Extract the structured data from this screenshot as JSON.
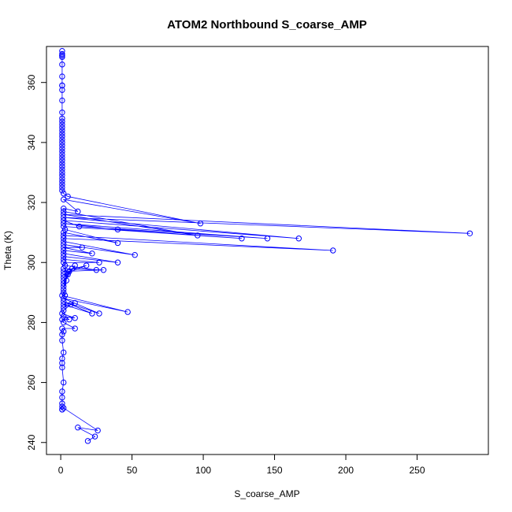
{
  "chart_data": {
    "type": "line",
    "title": "ATOM2 Northbound S_coarse_AMP",
    "xlabel": "S_coarse_AMP",
    "ylabel": "Theta (K)",
    "xlim": [
      -10,
      300
    ],
    "ylim": [
      236,
      372
    ],
    "xticks": [
      0,
      50,
      100,
      150,
      200,
      250
    ],
    "yticks": [
      240,
      260,
      280,
      300,
      320,
      340,
      360
    ],
    "grid": false,
    "legend": "none",
    "series_color": "#0000ff",
    "marker": "open-circle",
    "points": [
      [
        1,
        370.5
      ],
      [
        1,
        369.5
      ],
      [
        1,
        369
      ],
      [
        1,
        369
      ],
      [
        1,
        368.5
      ],
      [
        1,
        366
      ],
      [
        1,
        362
      ],
      [
        1,
        359
      ],
      [
        1,
        359
      ],
      [
        1,
        357.5
      ],
      [
        1,
        354
      ],
      [
        1,
        350
      ],
      [
        1,
        348
      ],
      [
        1,
        347
      ],
      [
        1,
        346
      ],
      [
        1,
        345
      ],
      [
        1,
        344
      ],
      [
        1,
        343
      ],
      [
        1,
        342
      ],
      [
        1,
        341
      ],
      [
        1,
        340
      ],
      [
        1,
        339
      ],
      [
        1,
        338
      ],
      [
        1,
        337
      ],
      [
        1,
        336
      ],
      [
        1,
        335
      ],
      [
        1,
        334
      ],
      [
        1,
        333
      ],
      [
        1,
        332
      ],
      [
        1,
        331
      ],
      [
        1,
        330
      ],
      [
        1,
        329
      ],
      [
        1,
        328
      ],
      [
        1,
        327
      ],
      [
        1,
        326
      ],
      [
        1,
        325
      ],
      [
        1,
        324
      ],
      [
        2,
        323
      ],
      [
        5,
        322
      ],
      [
        98,
        313
      ],
      [
        2,
        321
      ],
      [
        12,
        317
      ],
      [
        2,
        318
      ],
      [
        2,
        317
      ],
      [
        96,
        309
      ],
      [
        2,
        316
      ],
      [
        287,
        309.7
      ],
      [
        2,
        315
      ],
      [
        167,
        308
      ],
      [
        2,
        314
      ],
      [
        13,
        312
      ],
      [
        145,
        308
      ],
      [
        2,
        313
      ],
      [
        40,
        311
      ],
      [
        127,
        308
      ],
      [
        2,
        312
      ],
      [
        3,
        311
      ],
      [
        40,
        306.5
      ],
      [
        2,
        310
      ],
      [
        2,
        309
      ],
      [
        191,
        304
      ],
      [
        2,
        308
      ],
      [
        2,
        307
      ],
      [
        52,
        302.5
      ],
      [
        2,
        306
      ],
      [
        15,
        305
      ],
      [
        2,
        305
      ],
      [
        22,
        303
      ],
      [
        2,
        304
      ],
      [
        2,
        303
      ],
      [
        40,
        300
      ],
      [
        2,
        302
      ],
      [
        2,
        301
      ],
      [
        27,
        300
      ],
      [
        2,
        300
      ],
      [
        3,
        299
      ],
      [
        25,
        297.5
      ],
      [
        2,
        298
      ],
      [
        30,
        297.5
      ],
      [
        2,
        297
      ],
      [
        18,
        299
      ],
      [
        2,
        296
      ],
      [
        5,
        296
      ],
      [
        2,
        295
      ],
      [
        8,
        298
      ],
      [
        2,
        294
      ],
      [
        10,
        299
      ],
      [
        2,
        293
      ],
      [
        6,
        297
      ],
      [
        2,
        292
      ],
      [
        4,
        294
      ],
      [
        2,
        291
      ],
      [
        3,
        289
      ],
      [
        2,
        290
      ],
      [
        1,
        289
      ],
      [
        47,
        283.5
      ],
      [
        2,
        288
      ],
      [
        27,
        283
      ],
      [
        2,
        287
      ],
      [
        22,
        283
      ],
      [
        2,
        286
      ],
      [
        10,
        286.5
      ],
      [
        2,
        285
      ],
      [
        7,
        286
      ],
      [
        2,
        284
      ],
      [
        1,
        283
      ],
      [
        10,
        281.5
      ],
      [
        2,
        282
      ],
      [
        6,
        281
      ],
      [
        1,
        281
      ],
      [
        2,
        280
      ],
      [
        10,
        278
      ],
      [
        1,
        278
      ],
      [
        2,
        277
      ],
      [
        1,
        276
      ],
      [
        1,
        274
      ],
      [
        2,
        270
      ],
      [
        1,
        268
      ],
      [
        1,
        266.5
      ],
      [
        1,
        265
      ],
      [
        2,
        260
      ],
      [
        1,
        257
      ],
      [
        1,
        255
      ],
      [
        1,
        253
      ],
      [
        1,
        252
      ],
      [
        1,
        251
      ],
      [
        1,
        251
      ],
      [
        2,
        251.5
      ],
      [
        26,
        244
      ],
      [
        12,
        245
      ],
      [
        24,
        242
      ],
      [
        19,
        240.5
      ]
    ]
  }
}
